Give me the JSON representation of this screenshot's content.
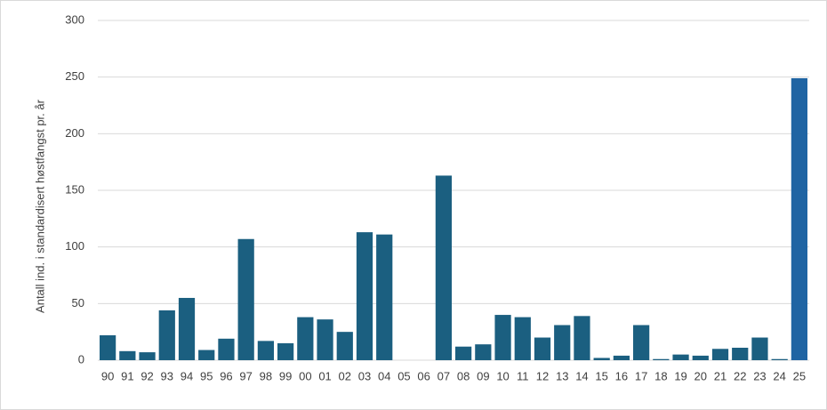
{
  "chart_data": {
    "type": "bar",
    "y_axis_label": "Antall ind. i standardisert høstfangst pr. år",
    "categories": [
      "90",
      "91",
      "92",
      "93",
      "94",
      "95",
      "96",
      "97",
      "98",
      "99",
      "00",
      "01",
      "02",
      "03",
      "04",
      "05",
      "06",
      "07",
      "08",
      "09",
      "10",
      "11",
      "12",
      "13",
      "14",
      "15",
      "16",
      "17",
      "18",
      "19",
      "20",
      "21",
      "22",
      "23",
      "24",
      "25"
    ],
    "values": [
      22,
      8,
      7,
      44,
      55,
      9,
      19,
      107,
      17,
      15,
      38,
      36,
      25,
      113,
      111,
      0,
      0,
      163,
      12,
      14,
      40,
      38,
      20,
      31,
      39,
      2,
      4,
      31,
      1,
      5,
      4,
      10,
      11,
      20,
      1,
      249
    ],
    "colors": [
      "#1b5f80",
      "#1b5f80",
      "#1b5f80",
      "#1b5f80",
      "#1b5f80",
      "#1b5f80",
      "#1b5f80",
      "#1b5f80",
      "#1b5f80",
      "#1b5f80",
      "#1b5f80",
      "#1b5f80",
      "#1b5f80",
      "#1b5f80",
      "#1b5f80",
      "#1b5f80",
      "#1b5f80",
      "#1b5f80",
      "#1b5f80",
      "#1b5f80",
      "#1b5f80",
      "#1b5f80",
      "#1b5f80",
      "#1b5f80",
      "#1b5f80",
      "#1b5f80",
      "#1b5f80",
      "#1b5f80",
      "#1b5f80",
      "#1b5f80",
      "#1b5f80",
      "#1b5f80",
      "#1b5f80",
      "#1b5f80",
      "#1b5f80",
      "#1f64a3"
    ],
    "ylim": [
      0,
      300
    ],
    "yticks": [
      0,
      50,
      100,
      150,
      200,
      250,
      300
    ],
    "grid": true
  }
}
